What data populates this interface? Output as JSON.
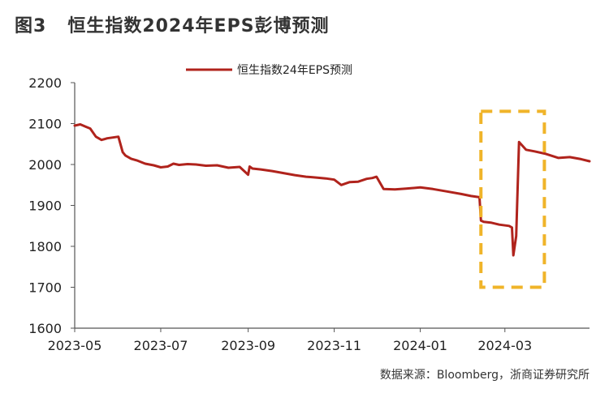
{
  "figure": {
    "number": "图3",
    "title": "恒生指数2024年EPS彭博预测",
    "source": "数据来源：Bloomberg，浙商证券研究所"
  },
  "chart_data": {
    "type": "line",
    "title": "",
    "xlabel": "",
    "ylabel": "",
    "ylim": [
      1600,
      2200
    ],
    "yticks": [
      1600,
      1700,
      1800,
      1900,
      2000,
      2100,
      2200
    ],
    "xlim": [
      "2023-05-01",
      "2024-04-30"
    ],
    "xticks": [
      "2023-05",
      "2023-07",
      "2023-09",
      "2023-11",
      "2024-01",
      "2024-03"
    ],
    "grid": false,
    "legend_position": "top",
    "line_color": "#b0231c",
    "highlight_color": "#f0b429",
    "highlight_box": {
      "x": [
        "2024-02-13",
        "2024-03-29"
      ],
      "y": [
        1700,
        2130
      ]
    },
    "series": [
      {
        "name": "恒生指数24年EPS预测",
        "x": [
          "2023-05-01",
          "2023-05-05",
          "2023-05-09",
          "2023-05-12",
          "2023-05-16",
          "2023-05-20",
          "2023-05-24",
          "2023-05-28",
          "2023-06-01",
          "2023-06-04",
          "2023-06-06",
          "2023-06-10",
          "2023-06-14",
          "2023-06-20",
          "2023-06-26",
          "2023-07-01",
          "2023-07-06",
          "2023-07-10",
          "2023-07-14",
          "2023-07-20",
          "2023-07-26",
          "2023-08-02",
          "2023-08-10",
          "2023-08-18",
          "2023-08-26",
          "2023-09-01",
          "2023-09-02",
          "2023-09-04",
          "2023-09-10",
          "2023-09-18",
          "2023-09-26",
          "2023-10-04",
          "2023-10-12",
          "2023-10-20",
          "2023-10-26",
          "2023-11-01",
          "2023-11-06",
          "2023-11-12",
          "2023-11-18",
          "2023-11-24",
          "2023-11-28",
          "2023-12-01",
          "2023-12-06",
          "2023-12-14",
          "2023-12-22",
          "2024-01-01",
          "2024-01-10",
          "2024-01-20",
          "2024-01-30",
          "2024-02-06",
          "2024-02-12",
          "2024-02-13",
          "2024-02-15",
          "2024-02-20",
          "2024-02-26",
          "2024-03-04",
          "2024-03-06",
          "2024-03-07",
          "2024-03-09",
          "2024-03-11",
          "2024-03-16",
          "2024-03-22",
          "2024-03-30",
          "2024-04-08",
          "2024-04-16",
          "2024-04-24",
          "2024-04-30"
        ],
        "values": [
          2095,
          2098,
          2092,
          2088,
          2068,
          2060,
          2064,
          2066,
          2068,
          2030,
          2022,
          2014,
          2010,
          2002,
          1998,
          1993,
          1995,
          2002,
          1999,
          2001,
          2000,
          1997,
          1998,
          1992,
          1994,
          1975,
          1995,
          1990,
          1988,
          1984,
          1979,
          1974,
          1970,
          1968,
          1966,
          1963,
          1950,
          1957,
          1958,
          1965,
          1967,
          1970,
          1940,
          1939,
          1941,
          1944,
          1940,
          1934,
          1928,
          1923,
          1920,
          1863,
          1860,
          1858,
          1853,
          1850,
          1846,
          1778,
          1825,
          2055,
          2036,
          2032,
          2026,
          2016,
          2018,
          2013,
          2008
        ]
      }
    ]
  }
}
